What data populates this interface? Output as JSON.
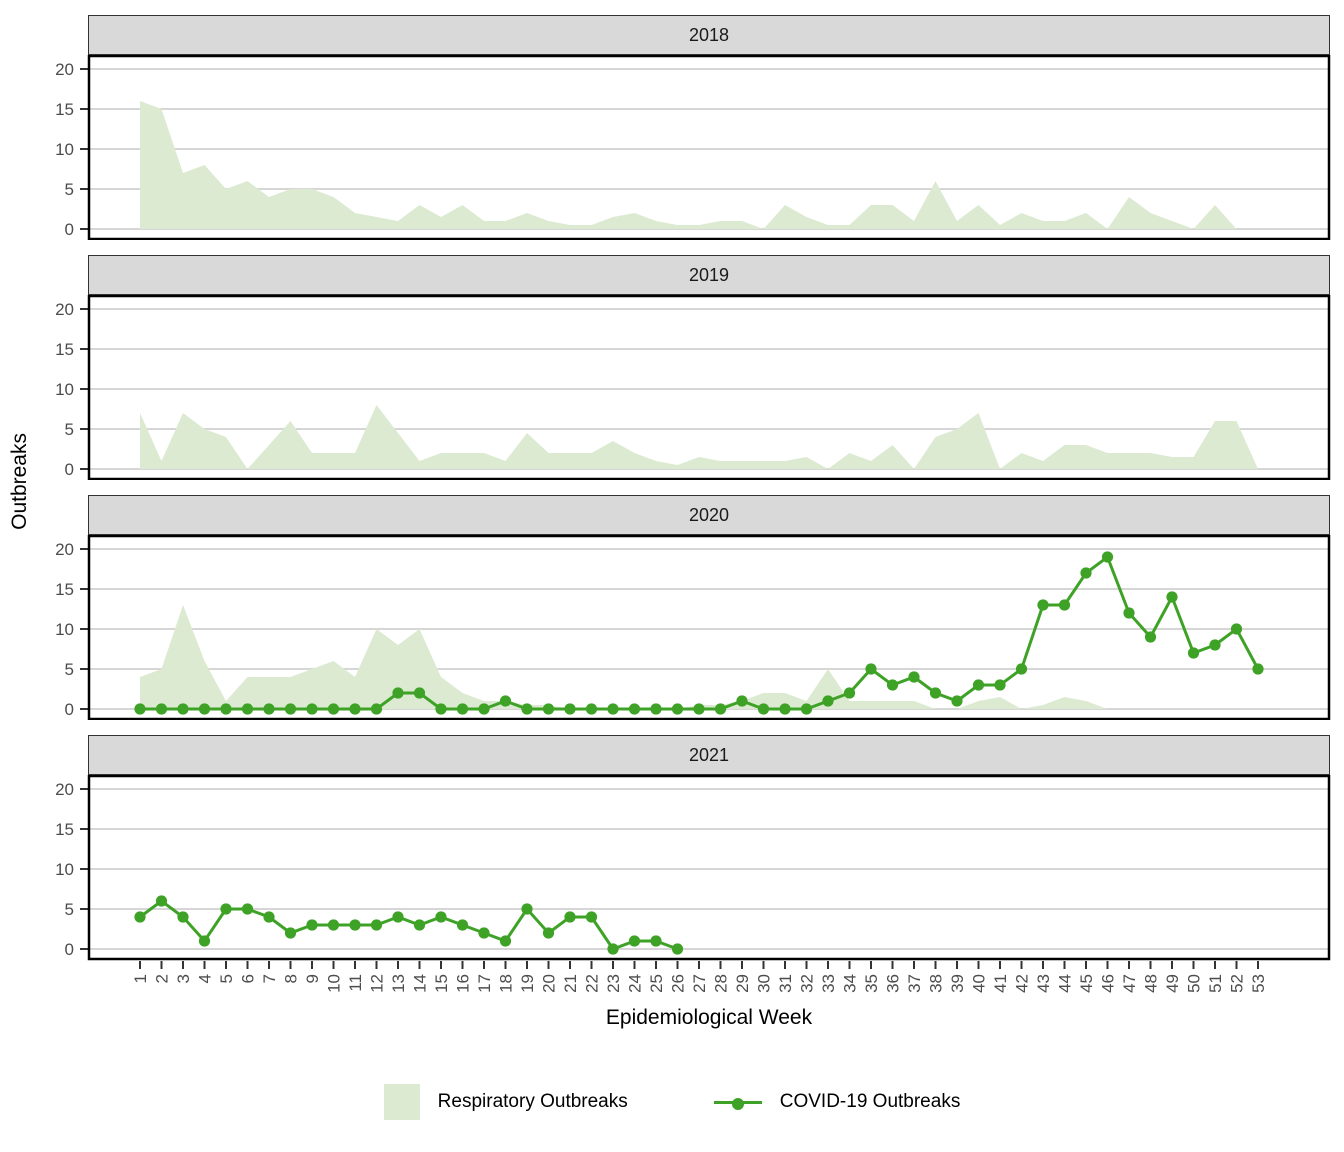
{
  "figure": {
    "x_axis_title": "Epidemiological Week",
    "y_axis_title": "Outbreaks",
    "legend": {
      "respiratory_label": "Respiratory Outbreaks",
      "covid_label": "COVID-19 Outbreaks"
    }
  },
  "chart_data": {
    "type": "area+line, faceted by year (4 stacked panels)",
    "xlabel": "Epidemiological Week",
    "ylabel": "Outbreaks",
    "x": [
      1,
      2,
      3,
      4,
      5,
      6,
      7,
      8,
      9,
      10,
      11,
      12,
      13,
      14,
      15,
      16,
      17,
      18,
      19,
      20,
      21,
      22,
      23,
      24,
      25,
      26,
      27,
      28,
      29,
      30,
      31,
      32,
      33,
      34,
      35,
      36,
      37,
      38,
      39,
      40,
      41,
      42,
      43,
      44,
      45,
      46,
      47,
      48,
      49,
      50,
      51,
      52,
      53
    ],
    "yticks": [
      0,
      5,
      10,
      15,
      20
    ],
    "ylim": [
      -1.5,
      22
    ],
    "grid": "horizontal gridlines at yticks",
    "legend_position": "bottom",
    "colors": {
      "respiratory_fill": "#dcead2",
      "covid_green": "#3ea226",
      "strip_bg": "#d9d9d9",
      "grid_line": "#d6d6d6",
      "axis_text": "#4d4d4d",
      "panel_border": "#000000"
    },
    "facets": [
      {
        "title": "2018",
        "series": [
          {
            "name": "Respiratory Outbreaks",
            "type": "area",
            "values": [
              16,
              15,
              7,
              8,
              5,
              6,
              4,
              5,
              5,
              4,
              2,
              1.5,
              1,
              3,
              1.5,
              3,
              1,
              1,
              2,
              1,
              0.5,
              0.5,
              1.5,
              2,
              1,
              0.5,
              0.5,
              1,
              1,
              0,
              3,
              1.5,
              0.5,
              0.5,
              3,
              3,
              1,
              6,
              1,
              3,
              0.5,
              2,
              1,
              1,
              2,
              0,
              4,
              2,
              1,
              0,
              3,
              0,
              0
            ]
          }
        ]
      },
      {
        "title": "2019",
        "series": [
          {
            "name": "Respiratory Outbreaks",
            "type": "area",
            "values": [
              7,
              1,
              7,
              5,
              4,
              0,
              3,
              6,
              2,
              2,
              2,
              8,
              4.5,
              1,
              2,
              2,
              2,
              1,
              4.5,
              2,
              2,
              2,
              3.5,
              2,
              1,
              0.5,
              1.5,
              1,
              1,
              1,
              1,
              1.5,
              0,
              2,
              1,
              3,
              0,
              4,
              5,
              7,
              0,
              2,
              1,
              3,
              3,
              2,
              2,
              2,
              1.5,
              1.5,
              6,
              6,
              0
            ]
          }
        ]
      },
      {
        "title": "2020",
        "series": [
          {
            "name": "Respiratory Outbreaks",
            "type": "area",
            "values": [
              4,
              5,
              13,
              6,
              1,
              4,
              4,
              4,
              5,
              6,
              4,
              10,
              8,
              10,
              4,
              2,
              1,
              1,
              0.5,
              0.5,
              0,
              0,
              0,
              0,
              0,
              0,
              0.5,
              0.5,
              1,
              2,
              2,
              1,
              5,
              1,
              1,
              1,
              1,
              0,
              0,
              1,
              1.5,
              0,
              0.5,
              1.5,
              1,
              0,
              0,
              0,
              0,
              0,
              0,
              0,
              0
            ]
          },
          {
            "name": "COVID-19 Outbreaks",
            "type": "line",
            "values": [
              0,
              0,
              0,
              0,
              0,
              0,
              0,
              0,
              0,
              0,
              0,
              0,
              2,
              2,
              0,
              0,
              0,
              1,
              0,
              0,
              0,
              0,
              0,
              0,
              0,
              0,
              0,
              0,
              1,
              0,
              0,
              0,
              1,
              2,
              5,
              3,
              4,
              2,
              1,
              3,
              3,
              5,
              13,
              13,
              17,
              19,
              12,
              9,
              14,
              7,
              8,
              10,
              5
            ]
          }
        ]
      },
      {
        "title": "2021",
        "series": [
          {
            "name": "COVID-19 Outbreaks",
            "type": "line",
            "values": [
              4,
              6,
              4,
              1,
              5,
              5,
              4,
              2,
              3,
              3,
              3,
              3,
              4,
              3,
              4,
              3,
              2,
              1,
              5,
              2,
              4,
              4,
              0,
              1,
              1,
              0
            ]
          }
        ]
      }
    ]
  }
}
